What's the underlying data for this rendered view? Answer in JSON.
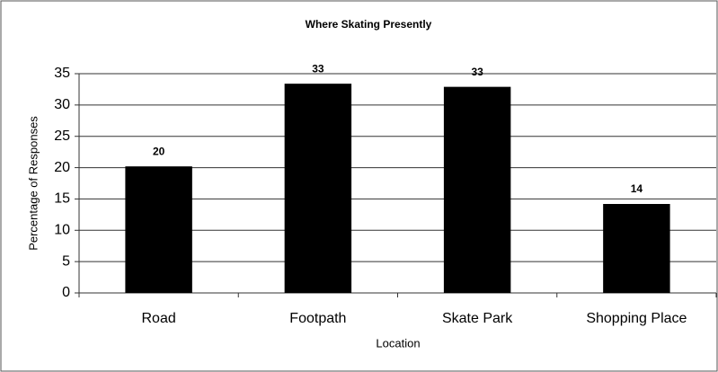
{
  "chart_data": {
    "type": "bar",
    "title": "Where Skating Presently",
    "x_label": "Location",
    "y_label": "Percentage of Responses",
    "categories": [
      "Road",
      "Footpath",
      "Skate Park",
      "Shopping Place"
    ],
    "values": [
      20.2,
      33.4,
      32.9,
      14.2
    ],
    "value_labels": [
      "20",
      "33",
      "33",
      "14"
    ],
    "color": "#000000",
    "ylim": [
      0,
      35
    ],
    "yticks": [
      0,
      5,
      10,
      15,
      20,
      25,
      30,
      35
    ],
    "grid": true
  }
}
